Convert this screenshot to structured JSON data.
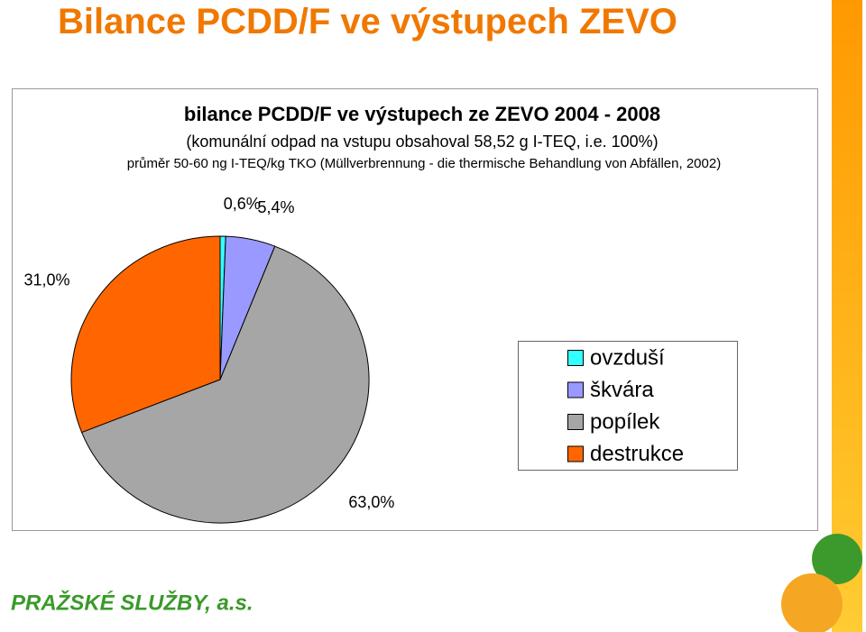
{
  "slide_title": "Bilance PCDD/F ve výstupech ZEVO",
  "footer": "PRAŽSKÉ SLUŽBY, a.s.",
  "chart_data": {
    "type": "pie",
    "title": "bilance PCDD/F ve výstupech ze ZEVO 2004 - 2008",
    "subtitle": "(komunální odpad na vstupu obsahoval 58,52 g I-TEQ, i.e. 100%)",
    "note": "průměr 50-60 ng I-TEQ/kg TKO (Müllverbrennung - die thermische Behandlung von Abfällen, 2002)",
    "categories": [
      "ovzduší",
      "škvára",
      "popílek",
      "destrukce"
    ],
    "values": [
      0.6,
      5.4,
      63.0,
      31.0
    ],
    "value_labels": [
      "0,6%",
      "5,4%",
      "63,0%",
      "31,0%"
    ],
    "colors": [
      "#33ffff",
      "#9999ff",
      "#a6a6a6",
      "#ff6600"
    ],
    "legend": "right"
  }
}
